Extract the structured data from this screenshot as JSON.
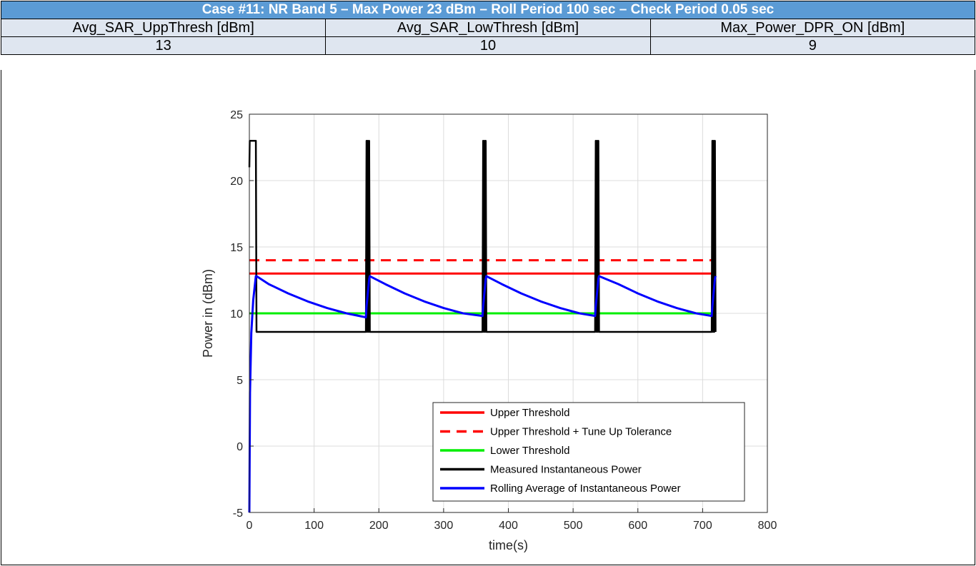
{
  "header": {
    "title": "Case #11: NR Band 5 – Max Power 23 dBm – Roll Period 100 sec – Check Period 0.05 sec",
    "columns": [
      "Avg_SAR_UppThresh [dBm]",
      "Avg_SAR_LowThresh [dBm]",
      "Max_Power_DPR_ON [dBm]"
    ],
    "values": [
      "13",
      "10",
      "9"
    ]
  },
  "colors": {
    "title_bg": "#5b9bd5",
    "cell_bg": "#dfe6f0"
  },
  "chart_data": {
    "type": "line",
    "title": "",
    "xlabel": "time(s)",
    "ylabel": "Power in (dBm)",
    "xlim": [
      0,
      800
    ],
    "ylim": [
      -5,
      25
    ],
    "xticks": [
      "0",
      "100",
      "200",
      "300",
      "400",
      "500",
      "600",
      "700",
      "800"
    ],
    "yticks": [
      "-5",
      "0",
      "5",
      "10",
      "15",
      "20",
      "25"
    ],
    "grid": true,
    "legend_position": "bottom-right",
    "series": [
      {
        "name": "Upper Threshold",
        "color": "#ff0000",
        "style": "solid",
        "x": [
          0,
          720
        ],
        "y": [
          13,
          13
        ]
      },
      {
        "name": "Upper Threshold + Tune Up Tolerance",
        "color": "#ff0000",
        "style": "dashed",
        "x": [
          0,
          720
        ],
        "y": [
          14,
          14
        ]
      },
      {
        "name": "Lower Threshold",
        "color": "#00ee00",
        "style": "solid",
        "x": [
          0,
          720
        ],
        "y": [
          10,
          10
        ]
      },
      {
        "name": "Measured Instantaneous Power",
        "color": "#000000",
        "style": "solid",
        "x": [
          0,
          0.5,
          2,
          8,
          10,
          11,
          12,
          180,
          181,
          182,
          183,
          184,
          185,
          186,
          187,
          360,
          361,
          362,
          363,
          364,
          365,
          366,
          367,
          534,
          535,
          536,
          537,
          538,
          539,
          540,
          541,
          714,
          715,
          716,
          717,
          718,
          719,
          720
        ],
        "y": [
          21,
          23,
          23,
          23,
          23,
          8.6,
          8.6,
          8.6,
          23,
          8.6,
          23,
          8.6,
          23,
          8.6,
          8.6,
          8.6,
          23,
          8.6,
          23,
          8.6,
          23,
          8.6,
          8.6,
          8.6,
          23,
          8.6,
          23,
          8.6,
          23,
          8.6,
          8.6,
          8.6,
          23,
          8.6,
          23,
          8.6,
          23,
          8.6
        ]
      },
      {
        "name": "Rolling Average of Instantaneous Power",
        "color": "#0000ff",
        "style": "solid",
        "x": [
          0,
          1,
          3,
          6,
          10,
          11,
          30,
          60,
          90,
          120,
          150,
          180,
          181,
          185,
          186,
          210,
          240,
          270,
          300,
          330,
          360,
          361,
          365,
          366,
          390,
          420,
          450,
          480,
          510,
          534,
          535,
          539,
          540,
          570,
          600,
          630,
          660,
          690,
          714,
          715,
          719,
          720
        ],
        "y": [
          -5,
          4,
          8.5,
          11,
          12.8,
          12.8,
          12.2,
          11.5,
          10.9,
          10.4,
          10.0,
          9.7,
          10.5,
          12.6,
          12.8,
          12.2,
          11.5,
          10.9,
          10.4,
          10.0,
          9.8,
          10.5,
          12.6,
          12.8,
          12.2,
          11.5,
          10.9,
          10.4,
          10.0,
          9.8,
          10.5,
          12.6,
          12.8,
          12.2,
          11.5,
          10.9,
          10.4,
          10.0,
          9.8,
          10.5,
          12.6,
          12.8
        ]
      }
    ]
  }
}
